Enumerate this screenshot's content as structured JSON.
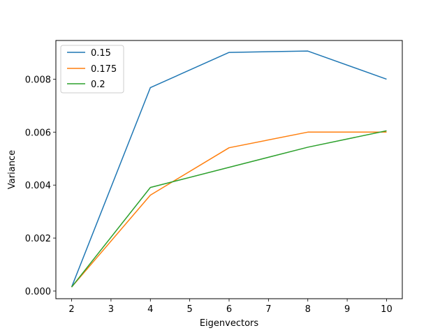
{
  "chart_data": {
    "type": "line",
    "title": "",
    "xlabel": "Eigenvectors",
    "ylabel": "Variance",
    "x": [
      2,
      4,
      6,
      8,
      10
    ],
    "xlim": [
      1.6,
      10.4
    ],
    "ylim": [
      -0.00029,
      0.00946
    ],
    "xticks": [
      2,
      3,
      4,
      5,
      6,
      7,
      8,
      9,
      10
    ],
    "yticks": [
      0.0,
      0.002,
      0.004,
      0.006,
      0.008
    ],
    "ytick_labels": [
      "0.000",
      "0.002",
      "0.004",
      "0.006",
      "0.008"
    ],
    "grid": false,
    "legend_position": "top-left",
    "series": [
      {
        "name": "0.15",
        "color": "#1f77b4",
        "values": [
          0.00015,
          0.00768,
          0.00901,
          0.00906,
          0.008
        ]
      },
      {
        "name": "0.175",
        "color": "#ff7f0e",
        "values": [
          0.00015,
          0.00362,
          0.00541,
          0.006,
          0.006
        ]
      },
      {
        "name": "0.2",
        "color": "#2ca02c",
        "values": [
          0.00015,
          0.00391,
          0.00467,
          0.00543,
          0.00605
        ]
      }
    ]
  }
}
